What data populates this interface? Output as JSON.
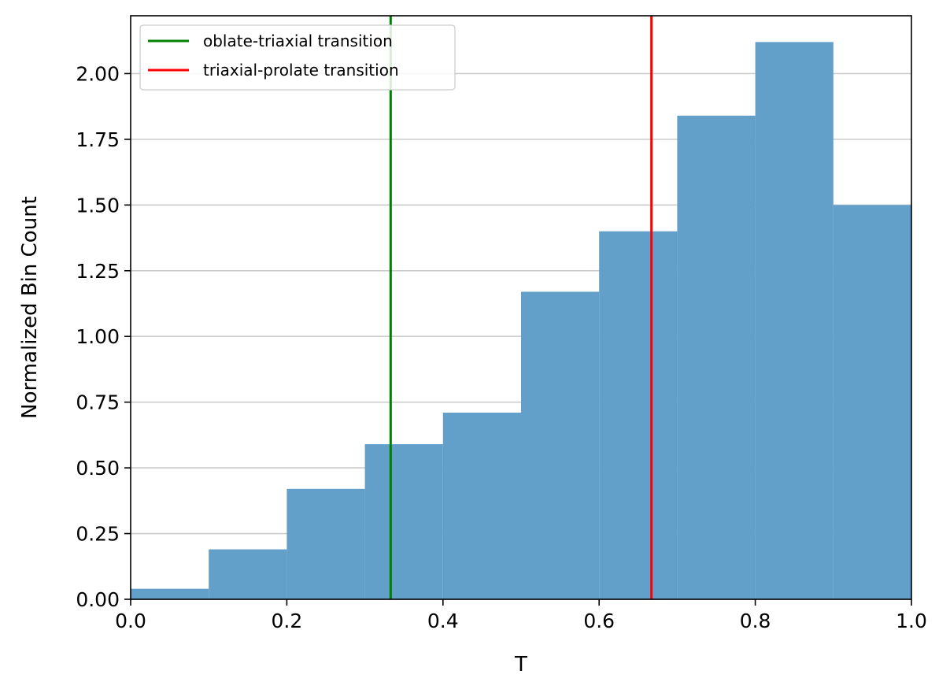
{
  "chart_data": {
    "type": "bar",
    "subtype": "histogram",
    "title": "",
    "xlabel": "T",
    "ylabel": "Normalized Bin Count",
    "xlim": [
      0.0,
      1.0
    ],
    "ylim": [
      0.0,
      2.22
    ],
    "xticks": [
      "0.0",
      "0.2",
      "0.4",
      "0.6",
      "0.8",
      "1.0"
    ],
    "yticks": [
      "0.00",
      "0.25",
      "0.50",
      "0.75",
      "1.00",
      "1.25",
      "1.50",
      "1.75",
      "2.00"
    ],
    "grid": "horizontal",
    "bar_color": "#62a0ca",
    "bins": [
      {
        "start": 0.0,
        "end": 0.1,
        "value": 0.04
      },
      {
        "start": 0.1,
        "end": 0.2,
        "value": 0.19
      },
      {
        "start": 0.2,
        "end": 0.3,
        "value": 0.42
      },
      {
        "start": 0.3,
        "end": 0.4,
        "value": 0.59
      },
      {
        "start": 0.4,
        "end": 0.5,
        "value": 0.71
      },
      {
        "start": 0.5,
        "end": 0.6,
        "value": 1.17
      },
      {
        "start": 0.6,
        "end": 0.7,
        "value": 1.4
      },
      {
        "start": 0.7,
        "end": 0.8,
        "value": 1.84
      },
      {
        "start": 0.8,
        "end": 0.9,
        "value": 2.12
      },
      {
        "start": 0.9,
        "end": 1.0,
        "value": 1.5
      }
    ],
    "vlines": [
      {
        "name": "oblate-triaxial transition",
        "x": 0.333,
        "color": "#008000"
      },
      {
        "name": "triaxial-prolate transition",
        "x": 0.667,
        "color": "#ff0000"
      }
    ],
    "legend": {
      "position": "top-left",
      "entries": [
        "oblate-triaxial transition",
        "triaxial-prolate transition"
      ]
    }
  }
}
